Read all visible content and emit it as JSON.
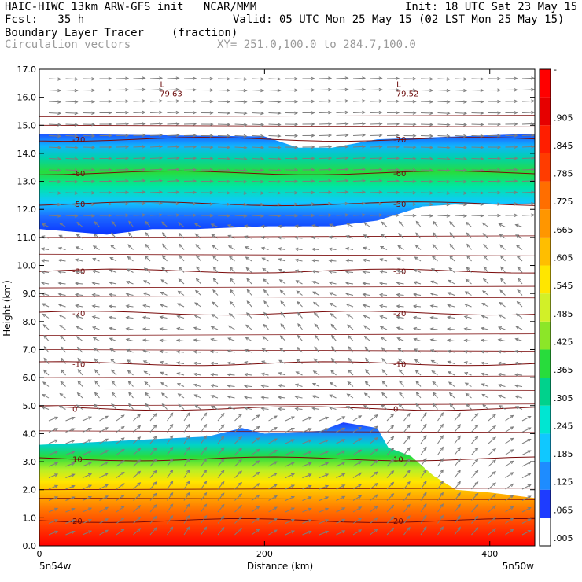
{
  "header": {
    "line1_left": "HAIC-HIWC 13km ARW-GFS init   NCAR/MMM",
    "line1_right": "Init: 18 UTC Sat 23 May 15",
    "fcst": "Fcst:   35 h",
    "valid": "Valid: 05 UTC Mon 25 May 15 (02 LST Mon 25 May 15)",
    "field": "Boundary Layer Tracer",
    "units": "(fraction)",
    "overlay": "Circulation vectors",
    "xy": "XY= 251.0,100.0 to 284.7,100.0"
  },
  "chart_data": {
    "type": "heatmap",
    "xlabel": "Distance (km)",
    "ylabel": "Height (km)",
    "xlim": [
      0,
      440
    ],
    "ylim": [
      0.0,
      17.0
    ],
    "x_ticks": [
      "0",
      "200",
      "400"
    ],
    "y_ticks": [
      "0.0",
      "1.0",
      "2.0",
      "3.0",
      "4.0",
      "5.0",
      "6.0",
      "7.0",
      "8.0",
      "9.0",
      "10.0",
      "11.0",
      "12.0",
      "13.0",
      "14.0",
      "15.0",
      "16.0",
      "17.0"
    ],
    "x_endpoint_labels": [
      "5n54w",
      "5n50w"
    ],
    "colorbar": {
      "labels": [
        ".005",
        ".065",
        ".125",
        ".185",
        ".245",
        ".305",
        ".365",
        ".425",
        ".485",
        ".545",
        ".605",
        ".665",
        ".725",
        ".785",
        ".845",
        ".905",
        "-"
      ],
      "colors": [
        "#ffffff",
        "#1e3cff",
        "#1e8cff",
        "#10c8ff",
        "#00e6d2",
        "#00d28c",
        "#28dc3c",
        "#8ce628",
        "#d2f028",
        "#ffe600",
        "#ffbe00",
        "#ff9600",
        "#ff6e00",
        "#ff3c00",
        "#ff1e00",
        "#e60000",
        "#ff0000"
      ]
    },
    "tracer_layers": [
      {
        "name": "upper",
        "bottom": [
          [
            0,
            11.3
          ],
          [
            60,
            11.1
          ],
          [
            100,
            11.3
          ],
          [
            140,
            11.3
          ],
          [
            200,
            11.4
          ],
          [
            260,
            11.4
          ],
          [
            300,
            11.6
          ],
          [
            340,
            12.1
          ],
          [
            380,
            12.2
          ],
          [
            440,
            12.2
          ]
        ],
        "top": [
          [
            0,
            14.7
          ],
          [
            200,
            14.6
          ],
          [
            230,
            14.2
          ],
          [
            260,
            14.2
          ],
          [
            300,
            14.5
          ],
          [
            440,
            14.7
          ]
        ]
      },
      {
        "name": "boundary",
        "top": [
          [
            0,
            3.6
          ],
          [
            50,
            3.7
          ],
          [
            100,
            3.8
          ],
          [
            150,
            3.9
          ],
          [
            180,
            4.2
          ],
          [
            200,
            4.0
          ],
          [
            250,
            4.1
          ],
          [
            270,
            4.4
          ],
          [
            300,
            4.2
          ],
          [
            310,
            3.5
          ],
          [
            330,
            3.2
          ],
          [
            350,
            2.5
          ],
          [
            370,
            2.0
          ],
          [
            400,
            1.9
          ],
          [
            440,
            1.7
          ]
        ]
      }
    ],
    "temperature_contours": [
      {
        "label": "-70",
        "y": 14.5
      },
      {
        "label": "-60",
        "y": 13.3
      },
      {
        "label": "-50",
        "y": 12.2
      },
      {
        "label": "-30",
        "y": 9.8
      },
      {
        "label": "-20",
        "y": 8.3
      },
      {
        "label": "-10",
        "y": 6.5
      },
      {
        "label": "0",
        "y": 4.9
      },
      {
        "label": "10",
        "y": 3.1
      },
      {
        "label": "20",
        "y": 0.9
      }
    ],
    "lows": [
      {
        "marker": "L",
        "value": "-79.63",
        "x": 110,
        "y": 16.2
      },
      {
        "marker": "L",
        "value": "-79.52",
        "x": 320,
        "y": 16.2
      }
    ]
  }
}
